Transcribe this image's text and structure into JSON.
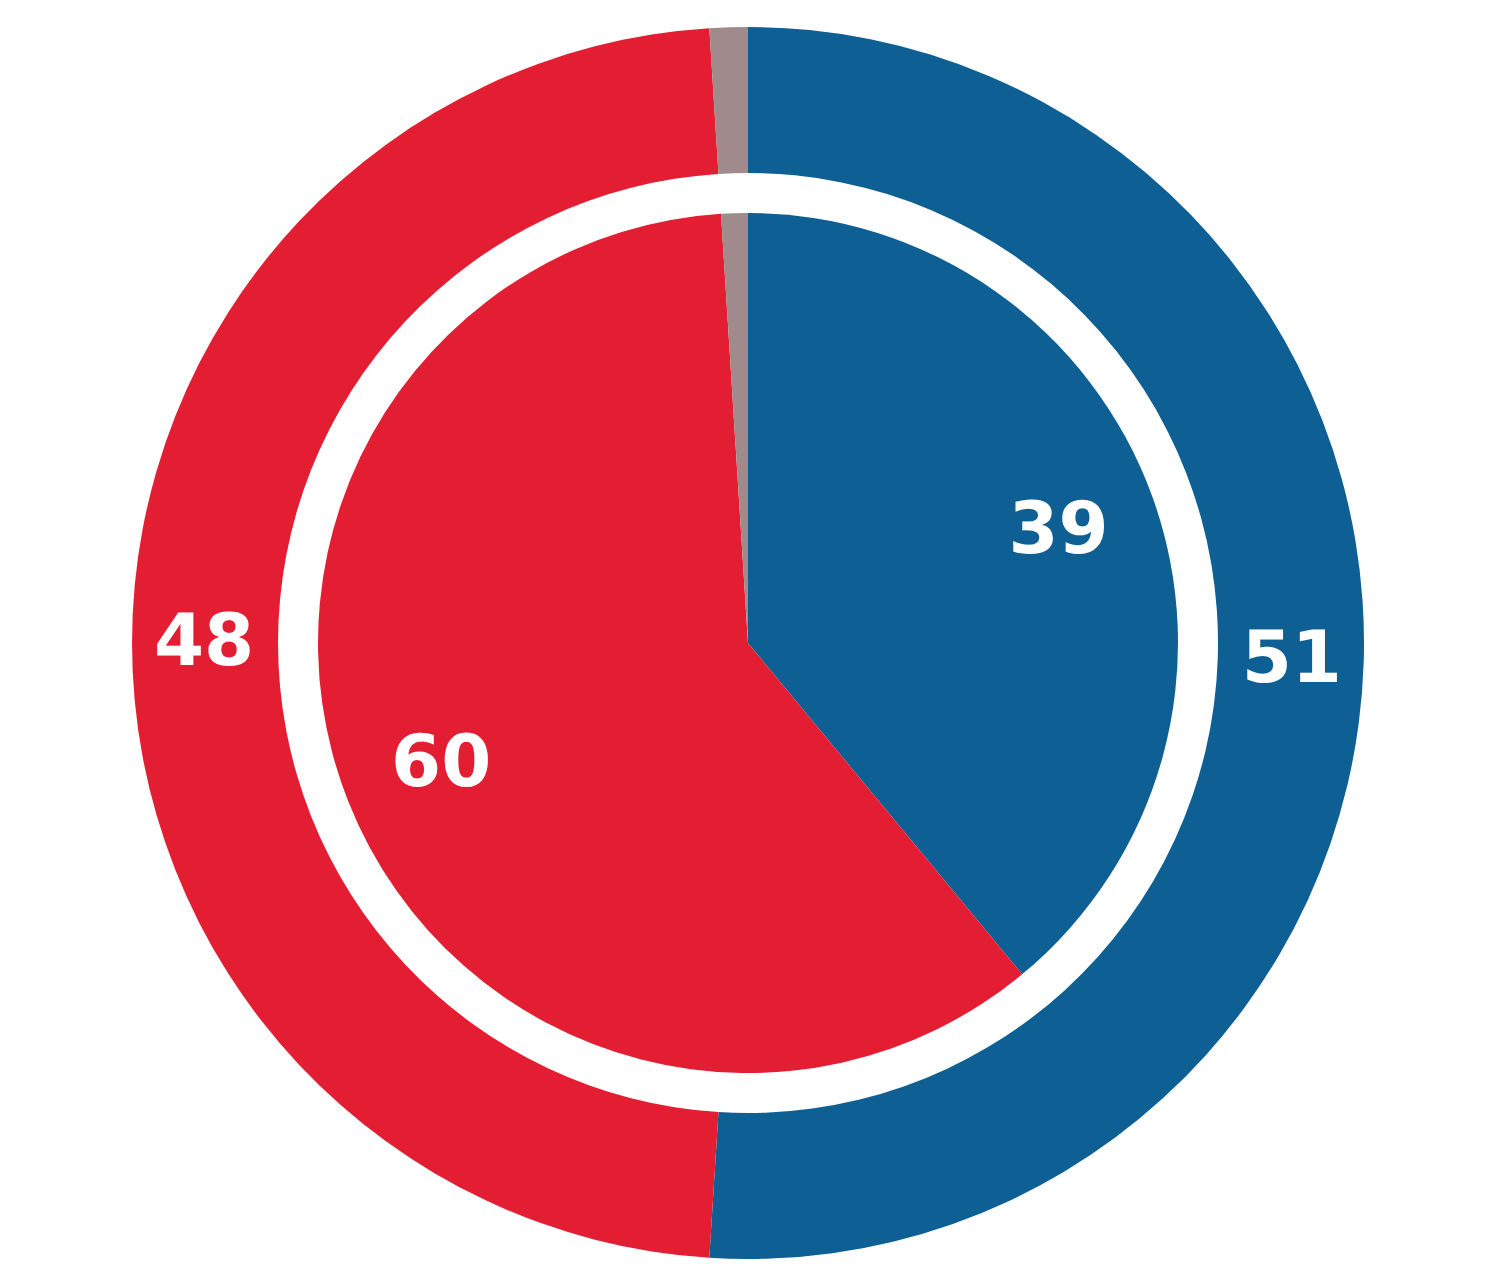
{
  "chart_data": {
    "type": "donut",
    "categories": [
      null,
      null,
      null
    ],
    "colors": [
      "#0e5f93",
      "#e31e33",
      "#a08a8c"
    ],
    "series": [
      {
        "values": [
          51,
          48,
          1
        ],
        "value_labels": [
          "51",
          "48",
          null
        ]
      },
      {
        "type": "pie",
        "values": [
          39,
          60,
          1
        ],
        "value_labels": [
          "39",
          "60",
          null
        ]
      }
    ]
  }
}
